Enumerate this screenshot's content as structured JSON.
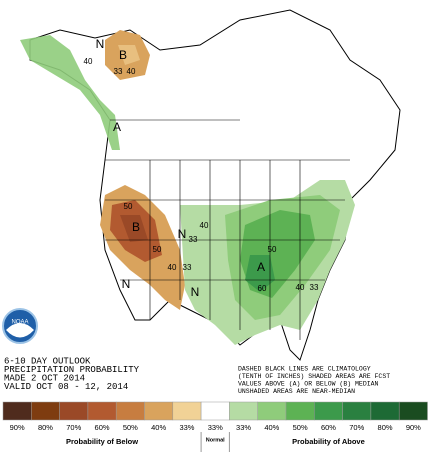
{
  "map": {
    "labels": [
      "N",
      "B",
      "33",
      "40",
      "40",
      "A",
      "50",
      "B",
      "50",
      "40",
      "33",
      "N",
      "33",
      "N",
      "N",
      "40",
      "A",
      "60",
      "50",
      "40",
      "33"
    ]
  },
  "outlook_text": [
    "6-10 DAY OUTLOOK",
    "PRECIPITATION PROBABILITY",
    "MADE  2 OCT 2014",
    "VALID  OCT 08 - 12, 2014"
  ],
  "notes": [
    "DASHED BLACK LINES ARE CLIMATOLOGY",
    "(TENTH OF INCHES) SHADED AREAS ARE FCST",
    "VALUES ABOVE (A) OR BELOW (B) MEDIAN",
    "UNSHADED AREAS ARE NEAR-MEDIAN"
  ],
  "logo": "NOAA",
  "legend": {
    "below": [
      {
        "label": "90%",
        "color": "#4f2b1d"
      },
      {
        "label": "80%",
        "color": "#7e3c10"
      },
      {
        "label": "70%",
        "color": "#9a4927"
      },
      {
        "label": "60%",
        "color": "#b25a30"
      },
      {
        "label": "50%",
        "color": "#c77d40"
      },
      {
        "label": "40%",
        "color": "#d9a35d"
      },
      {
        "label": "33%",
        "color": "#f1d296"
      }
    ],
    "normal": {
      "label": "33%",
      "color": "#ffffff"
    },
    "above": [
      {
        "label": "33%",
        "color": "#b5dca4"
      },
      {
        "label": "40%",
        "color": "#8fcc7b"
      },
      {
        "label": "50%",
        "color": "#5db254"
      },
      {
        "label": "60%",
        "color": "#3c9a4b"
      },
      {
        "label": "70%",
        "color": "#2a8040"
      },
      {
        "label": "80%",
        "color": "#1d6a35"
      },
      {
        "label": "90%",
        "color": "#1a4c20"
      }
    ],
    "below_caption": "Probability of Below",
    "normal_caption": "Normal",
    "above_caption": "Probability of Above"
  }
}
